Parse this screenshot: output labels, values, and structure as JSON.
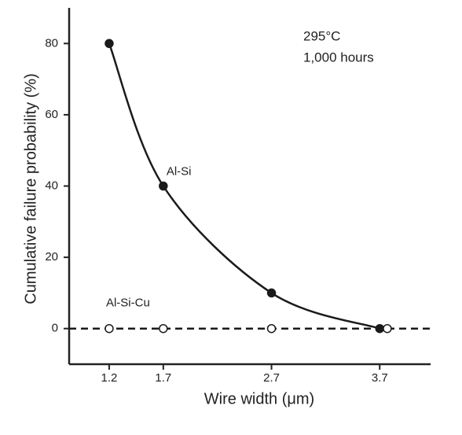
{
  "chart_data": {
    "type": "line",
    "x_label": "Wire width (μm)",
    "y_label": "Cumulative failure probability (%)",
    "annotations": [
      "295°C",
      "1,000 hours"
    ],
    "xlim": [
      0.83,
      4.17
    ],
    "xticks": [
      1.2,
      1.7,
      2.7,
      3.7
    ],
    "ylim": [
      -10,
      90
    ],
    "yticks": [
      0,
      20,
      40,
      60,
      80
    ],
    "grid": false,
    "series": [
      {
        "name": "Al-Si",
        "color": "#1a1a1a",
        "marker": "filled",
        "line": "solid",
        "x": [
          1.2,
          1.7,
          2.7,
          3.7
        ],
        "values": [
          80,
          40,
          10,
          0
        ]
      },
      {
        "name": "Al-Si-Cu",
        "color": "#1a1a1a",
        "marker": "open",
        "line": "dashed",
        "x": [
          1.2,
          1.7,
          2.7,
          3.77
        ],
        "values": [
          0,
          0,
          0,
          0
        ]
      }
    ]
  }
}
